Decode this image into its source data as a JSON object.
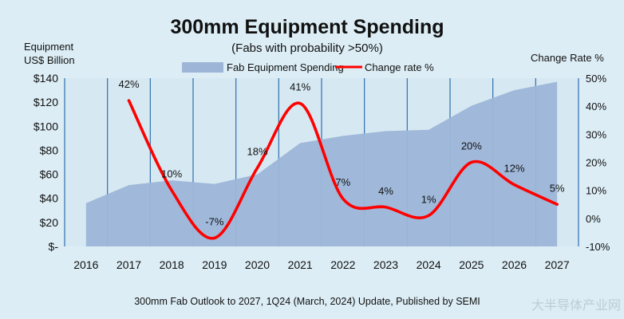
{
  "chart_data": {
    "type": "area",
    "title": "300mm Equipment Spending",
    "subtitle": "(Fabs with probability >50%)",
    "ylabel_line1": "Equipment",
    "ylabel_line2": "US$ Billion",
    "y2label": "Change Rate %",
    "footnote": "300mm Fab Outlook to 2027, 1Q24 (March, 2024) Update, Published by SEMI",
    "watermark": "大半导体产业网",
    "categories": [
      "2016",
      "2017",
      "2018",
      "2019",
      "2020",
      "2021",
      "2022",
      "2023",
      "2024",
      "2025",
      "2026",
      "2027"
    ],
    "ylim": [
      0,
      140
    ],
    "y_ticks": [
      "$-",
      "$20",
      "$40",
      "$60",
      "$80",
      "$100",
      "$120",
      "$140"
    ],
    "y2lim": [
      -10,
      50
    ],
    "y2_ticks": [
      "-10%",
      "0%",
      "10%",
      "20%",
      "30%",
      "40%",
      "50%"
    ],
    "legend_position": "top",
    "series": [
      {
        "name": "Fab Equipment Spending",
        "type": "area",
        "axis": "left",
        "color": "#9db6d8",
        "values": [
          36,
          51,
          55,
          52,
          60,
          86,
          92,
          96,
          97,
          117,
          130,
          137
        ]
      },
      {
        "name": "Change rate %",
        "type": "line",
        "axis": "right",
        "color": "#ff0000",
        "values": [
          null,
          42,
          10,
          -7,
          18,
          41,
          7,
          4,
          1,
          20,
          12,
          5
        ],
        "labels": [
          "",
          "42%",
          "10%",
          "-7%",
          "18%",
          "41%",
          "7%",
          "4%",
          "1%",
          "20%",
          "12%",
          "5%"
        ]
      }
    ],
    "grid": "vertical category lines",
    "colors": {
      "background": "#dcedf5",
      "plot_background": "#d6e8f2",
      "divider": "#2f6fb0"
    }
  }
}
